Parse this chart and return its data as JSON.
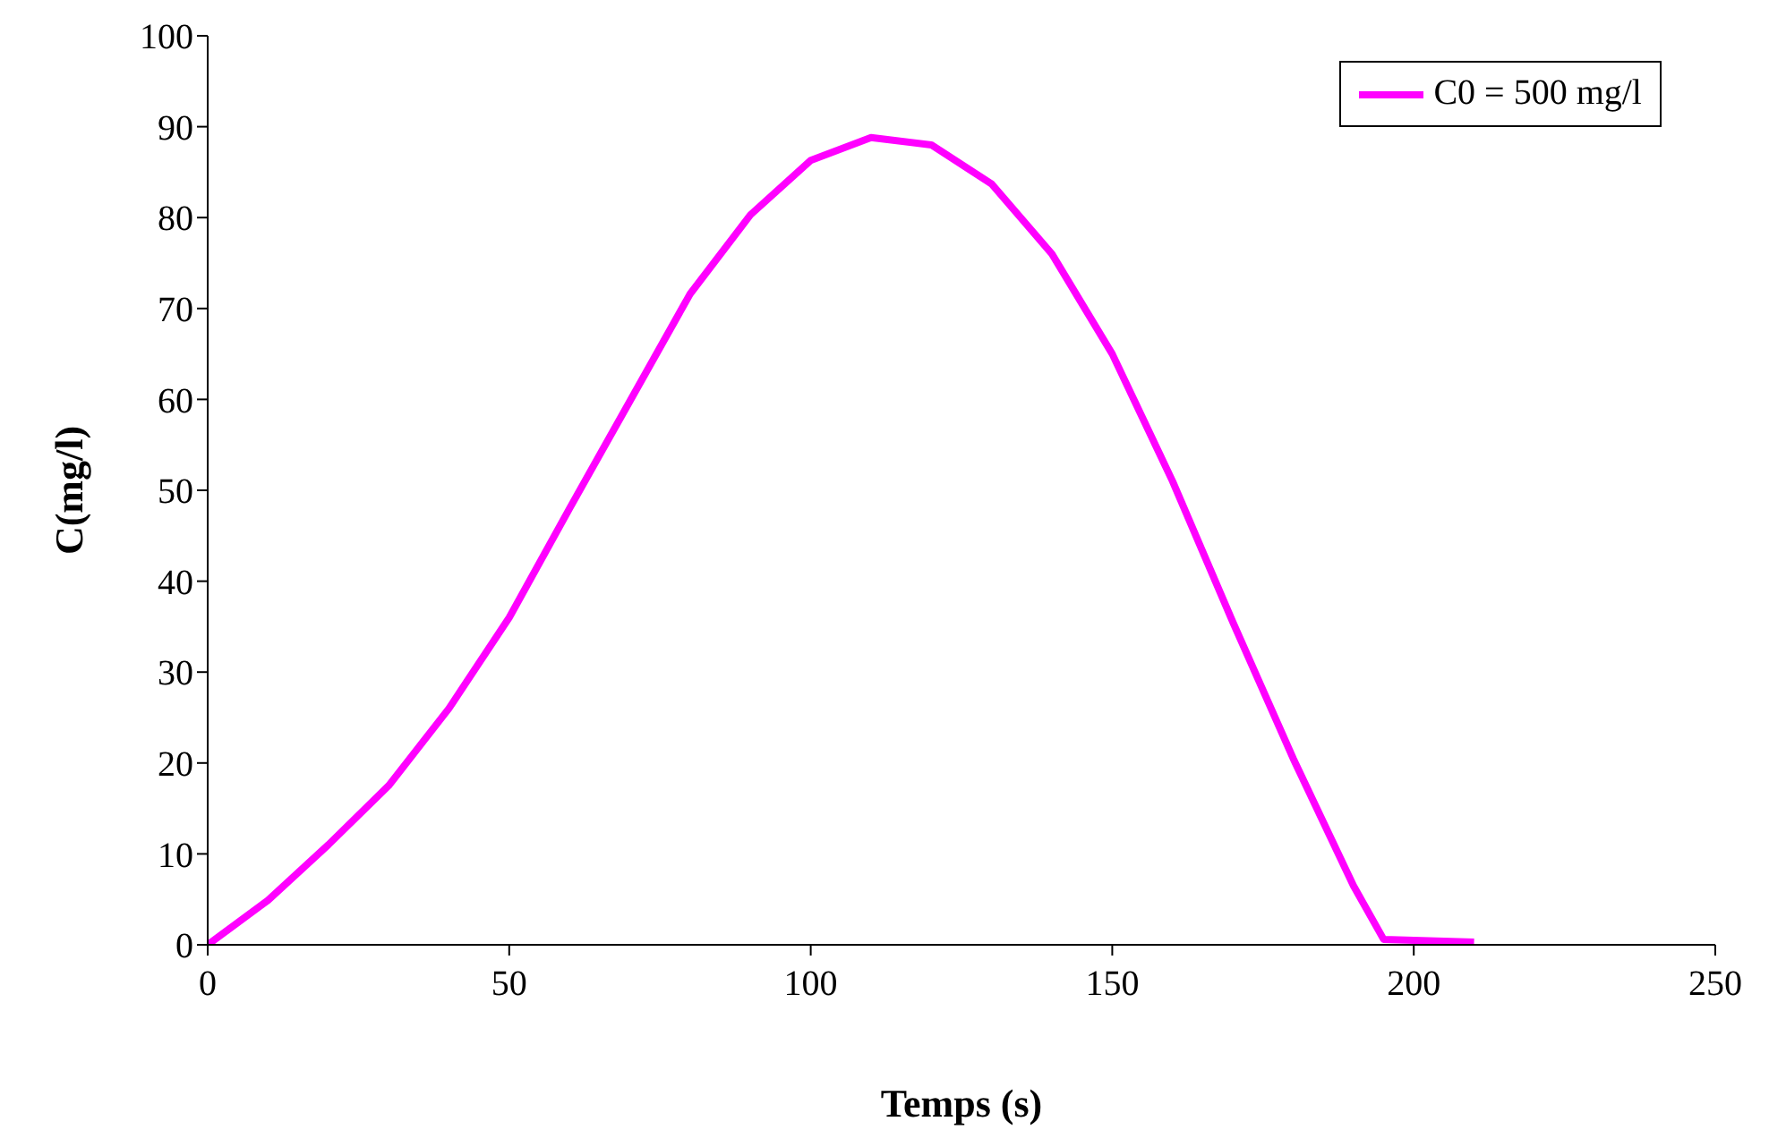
{
  "chart_data": {
    "type": "line",
    "xlabel": "Temps (s)",
    "ylabel": "C(mg/l)",
    "x": [
      0,
      10,
      20,
      30,
      40,
      50,
      60,
      70,
      80,
      90,
      100,
      110,
      120,
      130,
      140,
      150,
      160,
      170,
      180,
      190,
      195,
      210
    ],
    "series": [
      {
        "name": "C0 = 500 mg/l",
        "color": "#ff00ff",
        "values": [
          0,
          4.9,
          11,
          17.5,
          26,
          36,
          48,
          59.8,
          71.6,
          80.3,
          86.3,
          88.8,
          88,
          83.7,
          76,
          65,
          51,
          35.5,
          20.5,
          6.5,
          0.6,
          0.3
        ]
      }
    ],
    "xlim": [
      0,
      250
    ],
    "xticks": [
      0,
      50,
      100,
      150,
      200,
      250
    ],
    "ylim": [
      0,
      100
    ],
    "yticks": [
      0,
      10,
      20,
      30,
      40,
      50,
      60,
      70,
      80,
      90,
      100
    ],
    "grid": false,
    "legend": "top right",
    "marker": "none",
    "line_style": "solid"
  }
}
